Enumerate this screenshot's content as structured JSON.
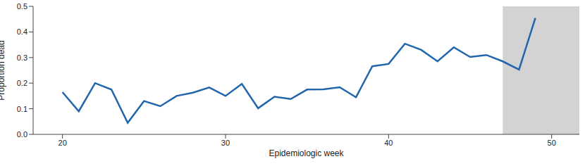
{
  "chart_data": {
    "type": "line",
    "x_label": "Epidemiologic week",
    "y_label": "Proportion dead",
    "x": [
      20,
      21,
      22,
      23,
      24,
      25,
      26,
      27,
      28,
      29,
      30,
      31,
      32,
      33,
      34,
      35,
      36,
      37,
      38,
      39,
      40,
      41,
      42,
      43,
      44,
      45,
      46,
      47,
      48,
      49
    ],
    "values": [
      0.165,
      0.09,
      0.2,
      0.175,
      0.045,
      0.13,
      0.11,
      0.15,
      0.163,
      0.183,
      0.15,
      0.197,
      0.102,
      0.147,
      0.138,
      0.175,
      0.176,
      0.184,
      0.145,
      0.266,
      0.275,
      0.354,
      0.33,
      0.285,
      0.34,
      0.302,
      0.31,
      0.285,
      0.253,
      0.454
    ],
    "color": "#2166ac",
    "xlim": [
      18.2,
      51.7
    ],
    "xticks": [
      20,
      30,
      40,
      50
    ],
    "ylim": [
      0,
      0.5
    ],
    "yticks": [
      {
        "value": 0,
        "label": "0.0"
      },
      {
        "value": 0.1,
        "label": "0.1"
      },
      {
        "value": 0.2,
        "label": "0.2"
      },
      {
        "value": 0.3,
        "label": "0.3"
      },
      {
        "value": 0.4,
        "label": "0.4"
      },
      {
        "value": 0.5,
        "label": "0.5"
      }
    ],
    "shaded_x_range": [
      47,
      51.7
    ],
    "grid": false
  }
}
